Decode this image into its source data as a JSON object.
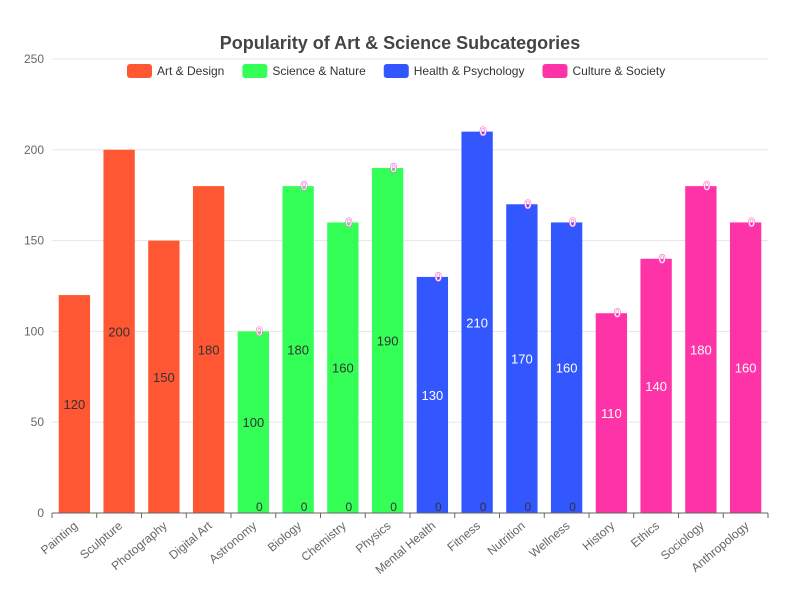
{
  "chart_data": {
    "type": "bar",
    "title": "Popularity of Art & Science Subcategories",
    "xlabel": "",
    "ylabel": "",
    "ylim": [
      0,
      250
    ],
    "yticks": [
      0,
      50,
      100,
      150,
      200,
      250
    ],
    "grid": true,
    "legend_position": "top-center",
    "categories": [
      "Painting",
      "Sculpture",
      "Photography",
      "Digital Art",
      "Astronomy",
      "Biology",
      "Chemistry",
      "Physics",
      "Mental Health",
      "Fitness",
      "Nutrition",
      "Wellness",
      "History",
      "Ethics",
      "Sociology",
      "Anthropology"
    ],
    "series": [
      {
        "name": "Art & Design",
        "color": "#ff5733",
        "label_color": "#333333",
        "zero_label_color": "#ff66cc",
        "values": [
          120,
          200,
          150,
          180,
          0,
          0,
          0,
          0,
          0,
          0,
          0,
          0,
          0,
          0,
          0,
          0
        ]
      },
      {
        "name": "Science & Nature",
        "color": "#33ff57",
        "label_color": "#333333",
        "zero_label_color": "#333333",
        "values": [
          0,
          0,
          0,
          0,
          100,
          180,
          160,
          190,
          0,
          0,
          0,
          0,
          0,
          0,
          0,
          0
        ]
      },
      {
        "name": "Health & Psychology",
        "color": "#3357ff",
        "label_color": "#ffffff",
        "zero_label_color": "#333333",
        "values": [
          0,
          0,
          0,
          0,
          0,
          0,
          0,
          0,
          130,
          210,
          170,
          160,
          0,
          0,
          0,
          0
        ]
      },
      {
        "name": "Culture & Society",
        "color": "#ff33a8",
        "label_color": "#ffffff",
        "zero_label_color": "#ffffff",
        "values": [
          0,
          0,
          0,
          0,
          0,
          0,
          0,
          0,
          0,
          0,
          0,
          0,
          110,
          140,
          180,
          160
        ]
      }
    ]
  }
}
